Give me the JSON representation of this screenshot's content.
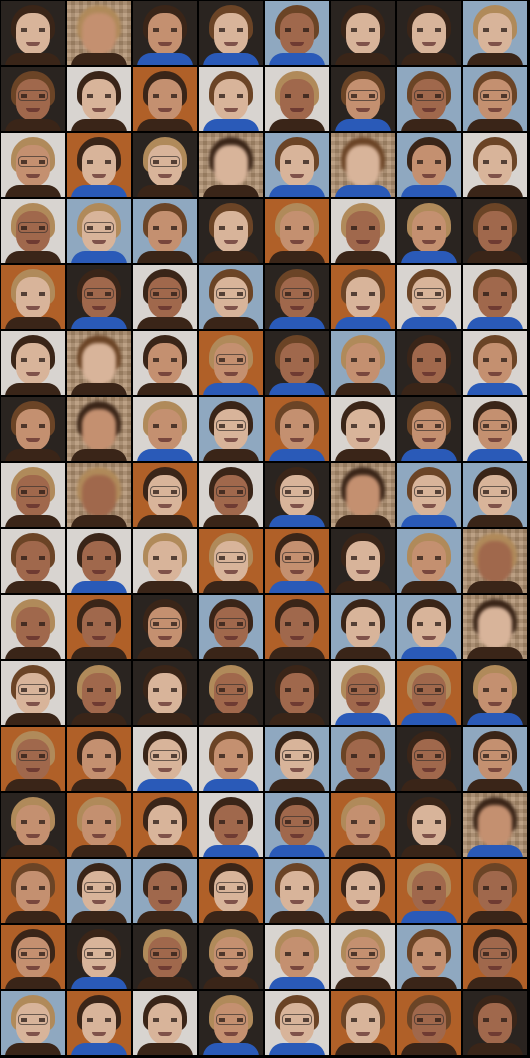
{
  "grid": {
    "columns": 8,
    "rows": 16,
    "content": "generated-face-samples"
  },
  "palette": {
    "background": "#000000",
    "skin_light": "#d8b49a",
    "skin_mid": "#c49070",
    "skin_dark": "#a0684c",
    "hair_dark": "#3a2518",
    "hair_brown": "#6b4426",
    "hair_blonde": "#b08a5a",
    "bg_sky": "#8fa8c0",
    "bg_white": "#d8d4d0",
    "bg_dark": "#2a2420",
    "bg_orange": "#b06028",
    "shirt_blue": "#2a5ab8",
    "noise_tan": "#b09070"
  }
}
